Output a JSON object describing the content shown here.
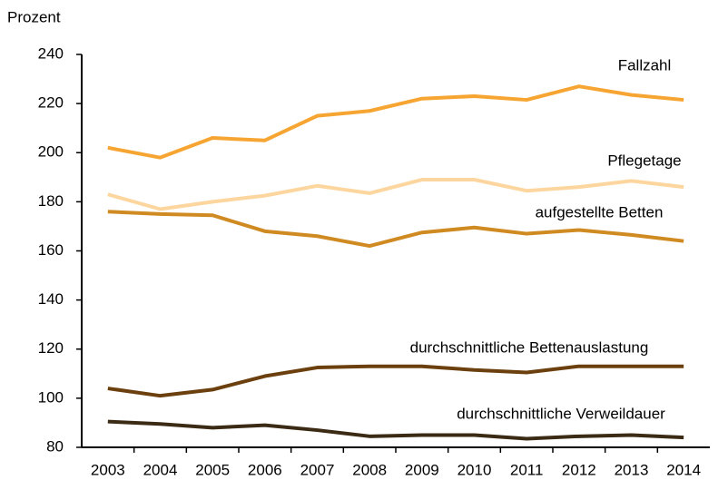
{
  "chart_data": {
    "type": "line",
    "y_label": "Prozent",
    "categories": [
      "2003",
      "2004",
      "2005",
      "2006",
      "2007",
      "2008",
      "2009",
      "2010",
      "2011",
      "2012",
      "2013",
      "2014"
    ],
    "ylim": [
      80,
      240
    ],
    "yticks": [
      80,
      100,
      120,
      140,
      160,
      180,
      200,
      220,
      240
    ],
    "grid": false,
    "series": [
      {
        "name": "Fallzahl",
        "color": "#f7a532",
        "values": [
          202,
          198,
          206,
          205,
          215,
          217,
          222,
          223,
          221.5,
          227,
          223.5,
          221.5
        ]
      },
      {
        "name": "Pflegetage",
        "color": "#fcd69e",
        "values": [
          183,
          177,
          180,
          182.5,
          186.5,
          183.5,
          189,
          189,
          184.5,
          186,
          188.5,
          186
        ]
      },
      {
        "name": "aufgestellte Betten",
        "color": "#d08a22",
        "values": [
          176,
          175,
          174.5,
          168,
          166,
          162,
          167.5,
          169.5,
          167,
          168.5,
          166.5,
          164
        ]
      },
      {
        "name": "durchschnittliche Bettenauslastung",
        "color": "#6b400e",
        "values": [
          104,
          101,
          103.5,
          109,
          112.5,
          113,
          113,
          111.5,
          110.5,
          113,
          113,
          113
        ]
      },
      {
        "name": "durchschnittliche Verweildauer",
        "color": "#3b2a14",
        "values": [
          90.5,
          89.5,
          88,
          89,
          87,
          84.5,
          85,
          85,
          83.5,
          84.5,
          85,
          84
        ]
      }
    ]
  }
}
